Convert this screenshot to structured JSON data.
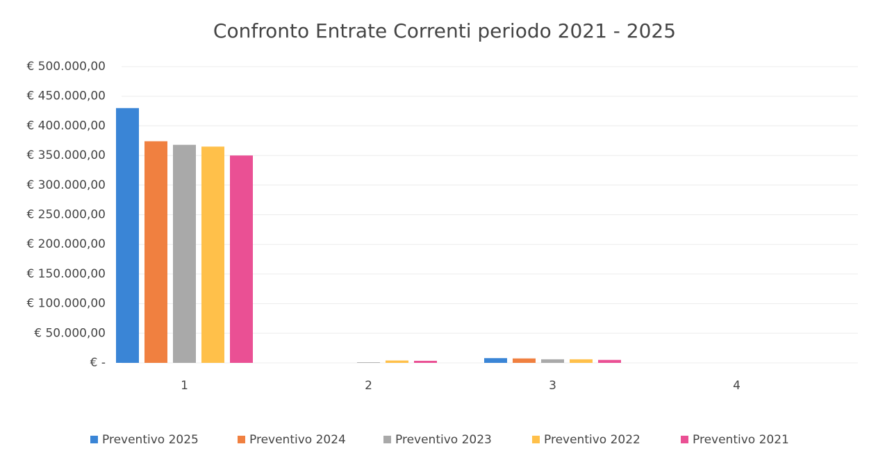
{
  "chart_data": {
    "type": "bar",
    "title": "Confronto Entrate Correnti periodo 2021 - 2025",
    "categories": [
      "1",
      "2",
      "3",
      "4"
    ],
    "series": [
      {
        "name": "Preventivo 2025",
        "color": "#3a85d6",
        "values": [
          430000,
          0,
          8000,
          0
        ]
      },
      {
        "name": "Preventivo 2024",
        "color": "#f08040",
        "values": [
          374000,
          0,
          7500,
          0
        ]
      },
      {
        "name": "Preventivo 2023",
        "color": "#a9a9a9",
        "values": [
          368000,
          1000,
          6000,
          0
        ]
      },
      {
        "name": "Preventivo 2022",
        "color": "#ffc04a",
        "values": [
          365000,
          4000,
          6000,
          0
        ]
      },
      {
        "name": "Preventivo 2021",
        "color": "#ea5094",
        "values": [
          350000,
          3500,
          5000,
          0
        ]
      }
    ],
    "ylim": [
      0,
      500000
    ],
    "yticks": [
      {
        "value": 0,
        "label": "€ -"
      },
      {
        "value": 50000,
        "label": "€ 50.000,00"
      },
      {
        "value": 100000,
        "label": "€ 100.000,00"
      },
      {
        "value": 150000,
        "label": "€ 150.000,00"
      },
      {
        "value": 200000,
        "label": "€ 200.000,00"
      },
      {
        "value": 250000,
        "label": "€ 250.000,00"
      },
      {
        "value": 300000,
        "label": "€ 300.000,00"
      },
      {
        "value": 350000,
        "label": "€ 350.000,00"
      },
      {
        "value": 400000,
        "label": "€ 400.000,00"
      },
      {
        "value": 450000,
        "label": "€ 450.000,00"
      },
      {
        "value": 500000,
        "label": "€ 500.000,00"
      }
    ],
    "grid": true,
    "legend": "bottom"
  }
}
